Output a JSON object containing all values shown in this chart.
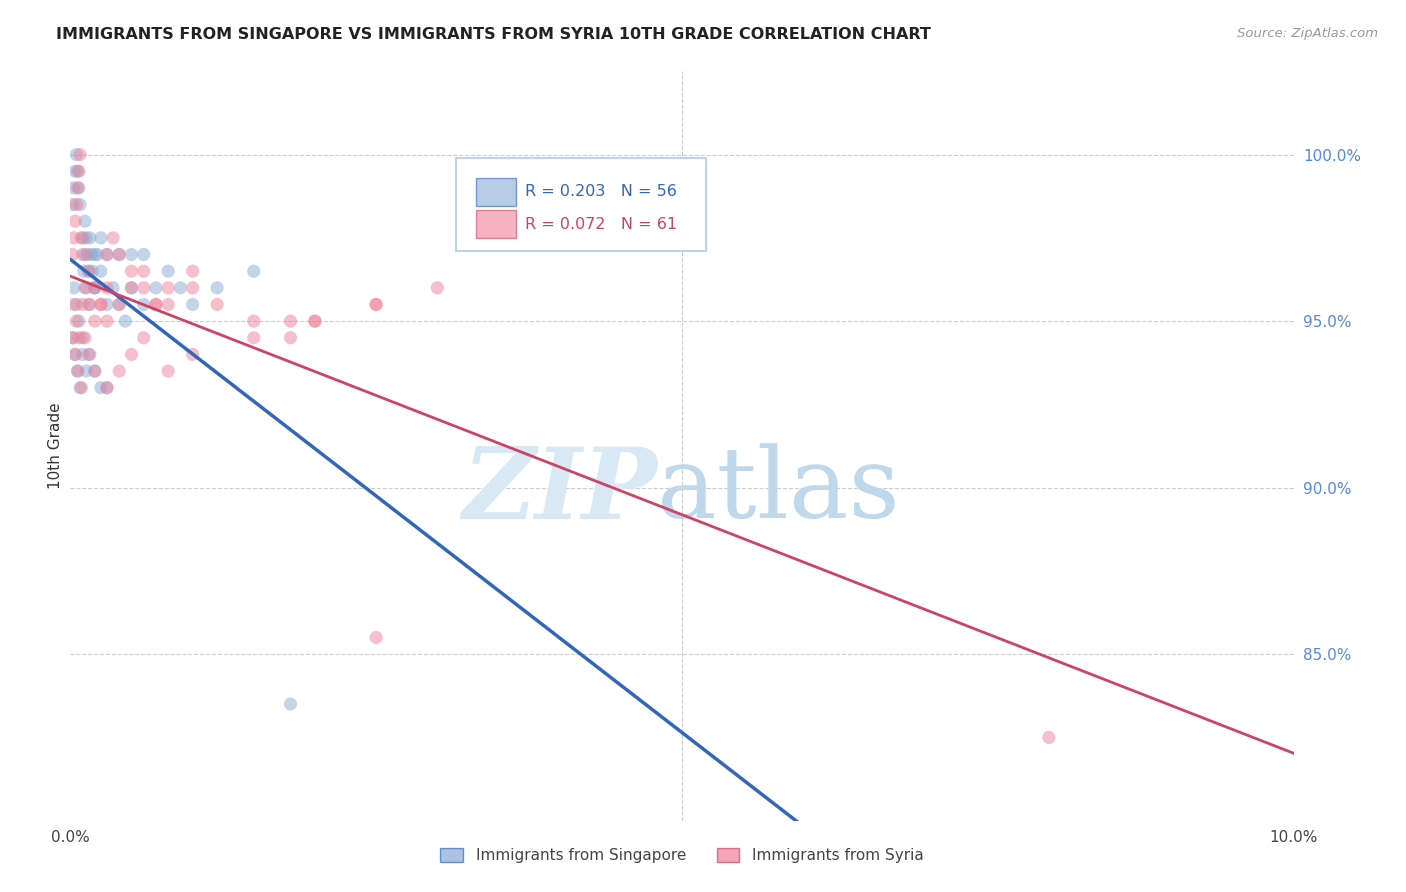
{
  "title": "IMMIGRANTS FROM SINGAPORE VS IMMIGRANTS FROM SYRIA 10TH GRADE CORRELATION CHART",
  "source": "Source: ZipAtlas.com",
  "ylabel": "10th Grade",
  "blue_scatter_color": "#89AAD4",
  "pink_scatter_color": "#F08098",
  "blue_line_color": "#3366BB",
  "pink_line_color": "#CC4466",
  "right_tick_color": "#5588DD",
  "watermark_zip_color": "#D0DCF0",
  "watermark_atlas_color": "#B8D0E8",
  "xlim": [
    0.0,
    0.1
  ],
  "ylim": [
    0.8,
    1.025
  ],
  "xticks": [
    0.0,
    0.1
  ],
  "xticklabels": [
    "0.0%",
    "10.0%"
  ],
  "yticks": [
    1.0,
    0.95,
    0.9,
    0.85
  ],
  "yticklabels": [
    "100.0%",
    "95.0%",
    "90.0%",
    "85.0%"
  ],
  "legend_R1": "R = 0.203",
  "legend_N1": "N = 56",
  "legend_R2": "R = 0.072",
  "legend_N2": "N = 61",
  "legend_label1": "Immigrants from Singapore",
  "legend_label2": "Immigrants from Syria",
  "sg_x": [
    0.0002,
    0.0003,
    0.0004,
    0.0005,
    0.0006,
    0.0007,
    0.0008,
    0.0009,
    0.001,
    0.0011,
    0.0012,
    0.0013,
    0.0014,
    0.0015,
    0.0016,
    0.0017,
    0.0018,
    0.002,
    0.0022,
    0.0025,
    0.0003,
    0.0005,
    0.0007,
    0.001,
    0.0012,
    0.0015,
    0.002,
    0.0025,
    0.003,
    0.0035,
    0.004,
    0.0045,
    0.005,
    0.006,
    0.007,
    0.008,
    0.009,
    0.01,
    0.012,
    0.015,
    0.0002,
    0.0004,
    0.0006,
    0.0008,
    0.001,
    0.0013,
    0.0016,
    0.002,
    0.0025,
    0.003,
    0.018,
    0.002,
    0.003,
    0.004,
    0.005,
    0.006
  ],
  "sg_y": [
    0.985,
    0.99,
    0.995,
    1.0,
    0.995,
    0.99,
    0.985,
    0.975,
    0.97,
    0.965,
    0.98,
    0.975,
    0.97,
    0.965,
    0.975,
    0.97,
    0.965,
    0.96,
    0.97,
    0.975,
    0.96,
    0.955,
    0.95,
    0.945,
    0.96,
    0.955,
    0.96,
    0.965,
    0.955,
    0.96,
    0.955,
    0.95,
    0.96,
    0.955,
    0.96,
    0.965,
    0.96,
    0.955,
    0.96,
    0.965,
    0.945,
    0.94,
    0.935,
    0.93,
    0.94,
    0.935,
    0.94,
    0.935,
    0.93,
    0.93,
    0.835,
    0.97,
    0.97,
    0.97,
    0.97,
    0.97
  ],
  "sy_x": [
    0.0002,
    0.0003,
    0.0004,
    0.0005,
    0.0006,
    0.0007,
    0.0008,
    0.001,
    0.0012,
    0.0015,
    0.002,
    0.0025,
    0.003,
    0.0035,
    0.004,
    0.005,
    0.006,
    0.007,
    0.008,
    0.01,
    0.0003,
    0.0005,
    0.0007,
    0.001,
    0.0013,
    0.0016,
    0.002,
    0.0025,
    0.003,
    0.004,
    0.005,
    0.006,
    0.008,
    0.01,
    0.012,
    0.015,
    0.018,
    0.02,
    0.025,
    0.03,
    0.0002,
    0.0004,
    0.0006,
    0.0009,
    0.0012,
    0.0015,
    0.002,
    0.003,
    0.004,
    0.005,
    0.006,
    0.008,
    0.01,
    0.015,
    0.02,
    0.025,
    0.08,
    0.003,
    0.007,
    0.018,
    0.025
  ],
  "sy_y": [
    0.97,
    0.975,
    0.98,
    0.985,
    0.99,
    0.995,
    1.0,
    0.975,
    0.97,
    0.965,
    0.96,
    0.955,
    0.97,
    0.975,
    0.97,
    0.965,
    0.96,
    0.955,
    0.96,
    0.965,
    0.955,
    0.95,
    0.945,
    0.955,
    0.96,
    0.955,
    0.95,
    0.955,
    0.96,
    0.955,
    0.96,
    0.965,
    0.955,
    0.96,
    0.955,
    0.95,
    0.945,
    0.95,
    0.955,
    0.96,
    0.945,
    0.94,
    0.935,
    0.93,
    0.945,
    0.94,
    0.935,
    0.93,
    0.935,
    0.94,
    0.945,
    0.935,
    0.94,
    0.945,
    0.95,
    0.955,
    0.825,
    0.95,
    0.955,
    0.95,
    0.855
  ]
}
